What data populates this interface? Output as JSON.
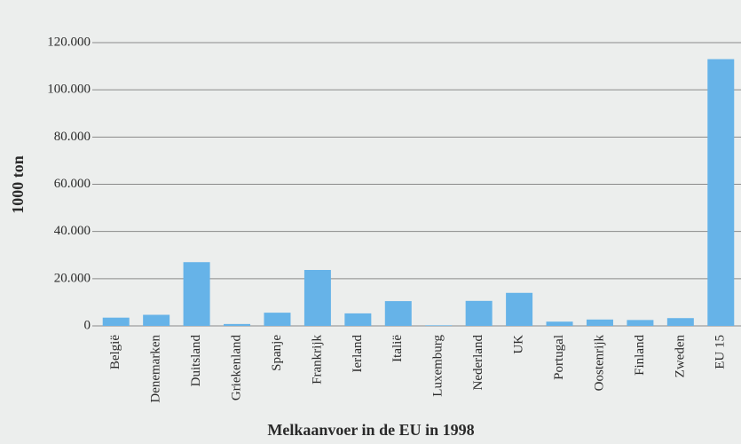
{
  "chart_data": {
    "type": "bar",
    "title": "Melkaanvoer in de EU in 1998",
    "ylabel": "1000 ton",
    "categories": [
      "België",
      "Denemarken",
      "Duitsland",
      "Griekenland",
      "Spanje",
      "Frankrijk",
      "Ierland",
      "Italië",
      "Luxemburg",
      "Nederland",
      "UK",
      "Portugal",
      "Oostenrijk",
      "Finland",
      "Zweden",
      "EU 15"
    ],
    "values": [
      3500,
      4700,
      27000,
      800,
      5600,
      23700,
      5300,
      10500,
      250,
      10600,
      14000,
      1800,
      2700,
      2500,
      3300,
      113000
    ],
    "color": "#66b3e8",
    "ylim": [
      0,
      120000
    ],
    "yticks": [
      0,
      {
        "value": 20000,
        "label": "20.000"
      },
      {
        "value": 40000,
        "label": "40.000"
      },
      {
        "value": 60000,
        "label": "60.000"
      },
      {
        "value": 80000,
        "label": "80.000"
      },
      {
        "value": 100000,
        "label": "100.000"
      },
      {
        "value": 120000,
        "label": "120.000"
      }
    ],
    "grid": true
  }
}
